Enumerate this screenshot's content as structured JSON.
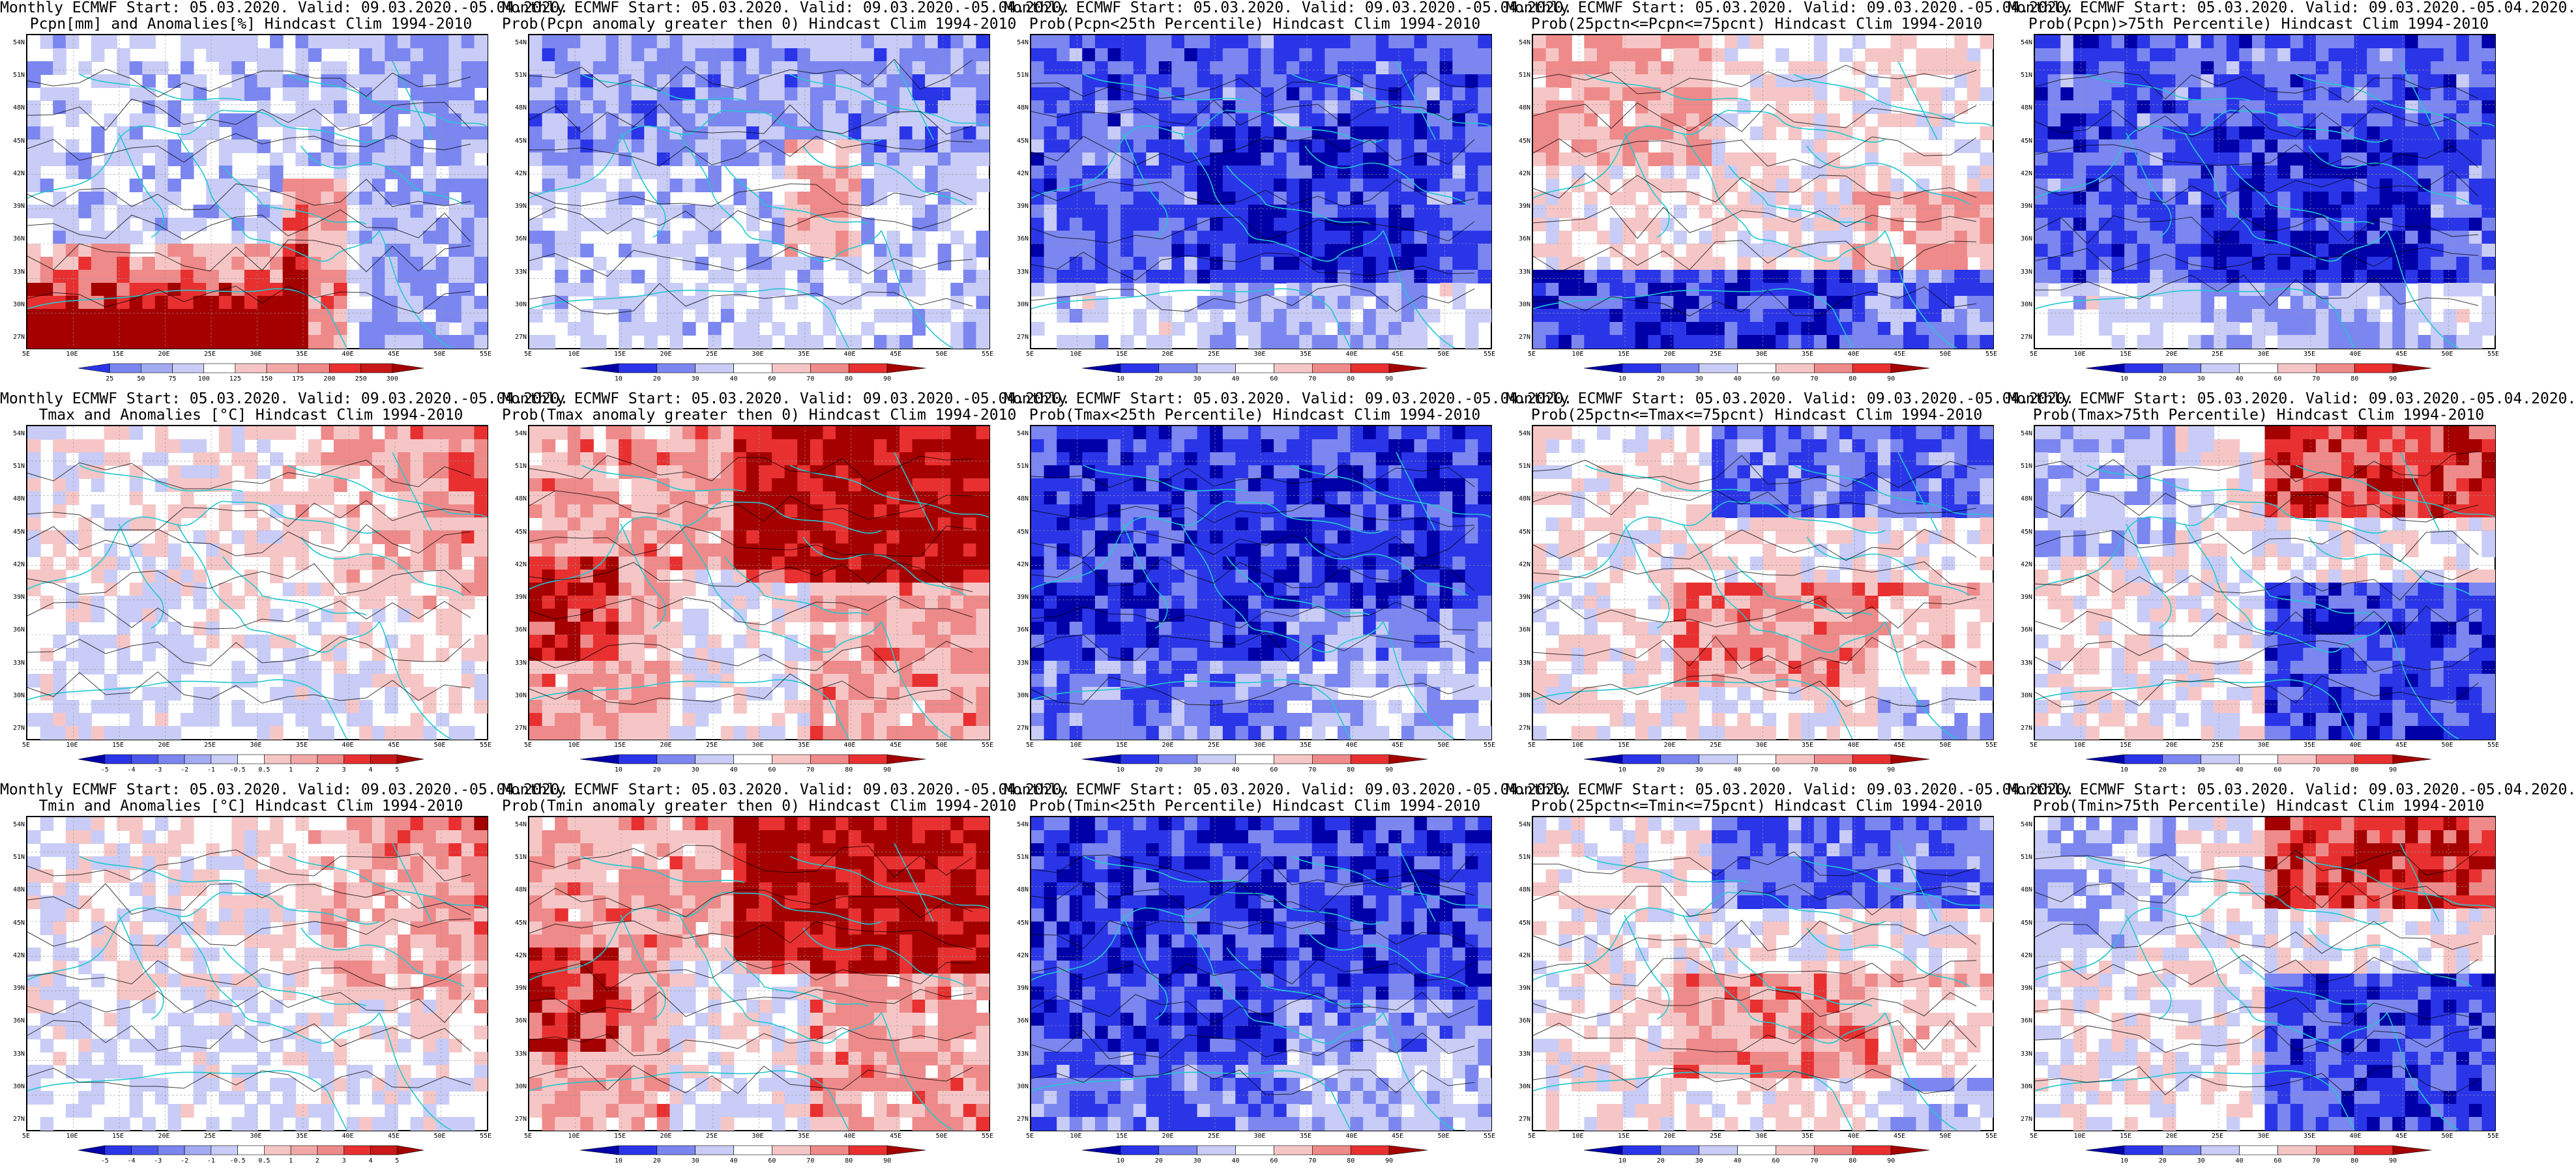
{
  "colors": {
    "blue_dark": "#0000a8",
    "blue_mid": "#2a35e8",
    "blue_light": "#7b86f0",
    "blue_pale": "#c8ccf6",
    "white": "#ffffff",
    "red_pale": "#f6c6c6",
    "red_light": "#ef8a8a",
    "red_mid": "#e83030",
    "red_dark": "#a40000",
    "country_border": "#22c8d0",
    "contour": "#000000"
  },
  "latitude_labels": [
    "54N",
    "51N",
    "48N",
    "45N",
    "42N",
    "39N",
    "36N",
    "33N",
    "30N",
    "27N"
  ],
  "longitude_labels": [
    "5E",
    "10E",
    "15E",
    "20E",
    "25E",
    "30E",
    "35E",
    "40E",
    "45E",
    "50E",
    "55E"
  ],
  "colorbars": {
    "pcpn_anom": [
      "25",
      "50",
      "75",
      "100",
      "125",
      "150",
      "175",
      "200",
      "250",
      "300"
    ],
    "temp_anom": [
      "-5",
      "-4",
      "-3",
      "-2",
      "-1",
      "-0.5",
      "0.5",
      "1",
      "2",
      "3",
      "4",
      "5"
    ],
    "prob": [
      "10",
      "20",
      "30",
      "40",
      "60",
      "70",
      "80",
      "90"
    ]
  },
  "panels": [
    {
      "title1": "Monthly ECMWF Start: 05.03.2020. Valid: 09.03.2020.-05.04.2020.",
      "title2": "Pcpn[mm] and Anomalies[%] Hindcast Clim 1994-2010",
      "colorbar": "pcpn_anom",
      "style": "pcpn",
      "seed": 11
    },
    {
      "title1": "Monthly ECMWF Start: 05.03.2020. Valid: 09.03.2020.-05.04.2020.",
      "title2": "Prob(Pcpn anomaly greater then 0) Hindcast Clim 1994-2010",
      "colorbar": "prob",
      "style": "mixed_blue",
      "seed": 12
    },
    {
      "title1": "Monthly ECMWF Start: 05.03.2020. Valid: 09.03.2020.-05.04.2020.",
      "title2": "Prob(Pcpn<25th Percentile) Hindcast Clim 1994-2010",
      "colorbar": "prob",
      "style": "blue_heavy",
      "seed": 13
    },
    {
      "title1": "Monthly ECMWF Start: 05.03.2020. Valid: 09.03.2020.-05.04.2020.",
      "title2": "Prob(25pctn<=Pcpn<=75pcnt) Hindcast Clim 1994-2010",
      "colorbar": "prob",
      "style": "pale_mixed",
      "seed": 14
    },
    {
      "title1": "Monthly ECMWF Start: 05.03.2020. Valid: 09.03.2020.-05.04.2020.",
      "title2": "Prob(Pcpn)>75th Percentile) Hindcast Clim 1994-2010",
      "colorbar": "prob",
      "style": "blue_heavy",
      "seed": 15
    },
    {
      "title1": "Monthly ECMWF Start: 05.03.2020. Valid: 09.03.2020.-05.04.2020.",
      "title2": "Tmax and Anomalies [°C] Hindcast Clim 1994-2010",
      "colorbar": "temp_anom",
      "style": "warm_ne",
      "seed": 21
    },
    {
      "title1": "Monthly ECMWF Start: 05.03.2020. Valid: 09.03.2020.-05.04.2020.",
      "title2": "Prob(Tmax anomaly greater then 0) Hindcast Clim 1994-2010",
      "colorbar": "prob",
      "style": "red_heavy",
      "seed": 22
    },
    {
      "title1": "Monthly ECMWF Start: 05.03.2020. Valid: 09.03.2020.-05.04.2020.",
      "title2": "Prob(Tmax<25th Percentile) Hindcast Clim 1994-2010",
      "colorbar": "prob",
      "style": "deep_blue",
      "seed": 23
    },
    {
      "title1": "Monthly ECMWF Start: 05.03.2020. Valid: 09.03.2020.-05.04.2020.",
      "title2": "Prob(25pctn<=Tmax<=75pcnt) Hindcast Clim 1994-2010",
      "colorbar": "prob",
      "style": "blue_top_red_mid",
      "seed": 24
    },
    {
      "title1": "Monthly ECMWF Start: 05.03.2020. Valid: 09.03.2020.-05.04.2020.",
      "title2": "Prob(Tmax>75th Percentile) Hindcast Clim 1994-2010",
      "colorbar": "prob",
      "style": "red_top_blue_bottom",
      "seed": 25
    },
    {
      "title1": "Monthly ECMWF Start: 05.03.2020. Valid: 09.03.2020.-05.04.2020.",
      "title2": "Tmin and Anomalies [°C] Hindcast Clim 1994-2010",
      "colorbar": "temp_anom",
      "style": "warm_ne",
      "seed": 31
    },
    {
      "title1": "Monthly ECMWF Start: 05.03.2020. Valid: 09.03.2020.-05.04.2020.",
      "title2": "Prob(Tmin anomaly greater then 0) Hindcast Clim 1994-2010",
      "colorbar": "prob",
      "style": "red_heavy",
      "seed": 32
    },
    {
      "title1": "Monthly ECMWF Start: 05.03.2020. Valid: 09.03.2020.-05.04.2020.",
      "title2": "Prob(Tmin<25th Percentile) Hindcast Clim 1994-2010",
      "colorbar": "prob",
      "style": "deep_blue",
      "seed": 33
    },
    {
      "title1": "Monthly ECMWF Start: 05.03.2020. Valid: 09.03.2020.-05.04.2020.",
      "title2": "Prob(25pctn<=Tmin<=75pcnt) Hindcast Clim 1994-2010",
      "colorbar": "prob",
      "style": "blue_top_red_mid",
      "seed": 34
    },
    {
      "title1": "Monthly ECMWF Start: 05.03.2020. Valid: 09.03.2020.-05.04.2020.",
      "title2": "Prob(Tmin>75th Percentile) Hindcast Clim 1994-2010",
      "colorbar": "prob",
      "style": "red_top_blue_bottom",
      "seed": 35
    }
  ]
}
